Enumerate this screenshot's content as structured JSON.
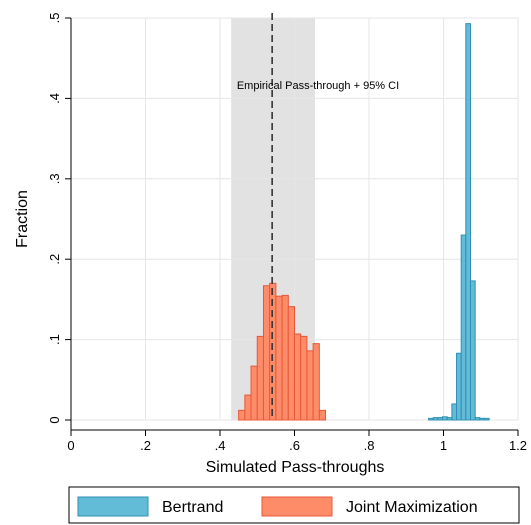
{
  "chart_data": {
    "type": "bar",
    "subtype": "histogram",
    "xlabel": "Simulated Pass-throughs",
    "ylabel": "Fraction",
    "xlim": [
      0,
      1.2
    ],
    "ylim": [
      0,
      0.5
    ],
    "x_ticks": [
      0,
      0.2,
      0.4,
      0.6,
      0.8,
      1,
      1.2
    ],
    "x_tick_labels": [
      "0",
      ".2",
      ".4",
      ".6",
      ".8",
      "1",
      "1.2"
    ],
    "y_ticks": [
      0,
      0.1,
      0.2,
      0.3,
      0.4,
      0.5
    ],
    "y_tick_labels": [
      "0",
      ".1",
      ".2",
      ".3",
      ".4",
      ".5"
    ],
    "grid": true,
    "legend_position": "bottom",
    "annotation": {
      "text": "Empirical Pass-through + 95% CI",
      "empirical_value": 0.54,
      "ci": [
        0.43,
        0.655
      ]
    },
    "series": [
      {
        "name": "Bertrand",
        "color": "#62bcd8",
        "edge_color": "#2f8fb3",
        "bin_width": 0.0125,
        "bins": [
          {
            "x": 0.96,
            "y": 0.002
          },
          {
            "x": 0.9725,
            "y": 0.003
          },
          {
            "x": 0.985,
            "y": 0.003
          },
          {
            "x": 0.9975,
            "y": 0.004
          },
          {
            "x": 1.01,
            "y": 0.003
          },
          {
            "x": 1.0225,
            "y": 0.02
          },
          {
            "x": 1.035,
            "y": 0.083
          },
          {
            "x": 1.0475,
            "y": 0.23
          },
          {
            "x": 1.06,
            "y": 0.493
          },
          {
            "x": 1.0725,
            "y": 0.173
          },
          {
            "x": 1.085,
            "y": 0.003
          },
          {
            "x": 1.0975,
            "y": 0.002
          },
          {
            "x": 1.11,
            "y": 0.002
          }
        ]
      },
      {
        "name": "Joint Maximization",
        "color": "#ff8c69",
        "edge_color": "#e8573a",
        "bin_width": 0.0167,
        "bins": [
          {
            "x": 0.45,
            "y": 0.012
          },
          {
            "x": 0.4667,
            "y": 0.031
          },
          {
            "x": 0.4833,
            "y": 0.067
          },
          {
            "x": 0.5,
            "y": 0.104
          },
          {
            "x": 0.5167,
            "y": 0.167
          },
          {
            "x": 0.5333,
            "y": 0.17
          },
          {
            "x": 0.55,
            "y": 0.154
          },
          {
            "x": 0.5667,
            "y": 0.155
          },
          {
            "x": 0.5833,
            "y": 0.141
          },
          {
            "x": 0.6,
            "y": 0.107
          },
          {
            "x": 0.6167,
            "y": 0.104
          },
          {
            "x": 0.6333,
            "y": 0.086
          },
          {
            "x": 0.65,
            "y": 0.095
          },
          {
            "x": 0.6667,
            "y": 0.012
          }
        ]
      }
    ]
  }
}
